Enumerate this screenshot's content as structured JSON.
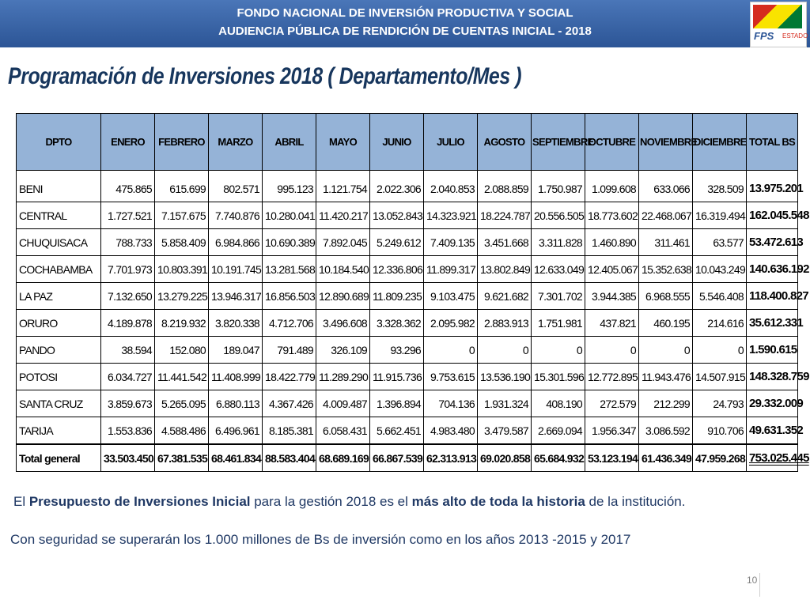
{
  "header": {
    "line1": "FONDO NACIONAL DE INVERSIÓN PRODUCTIVA Y SOCIAL",
    "line2": "AUDIENCIA PÚBLICA DE RENDICIÓN DE CUENTAS INICIAL - 2018",
    "logo_text": "FPS",
    "logo_subtext": "ESTADO"
  },
  "title": "Programación de Inversiones 2018 ( Departamento/Mes )",
  "table": {
    "columns": [
      "DPTO",
      "ENERO",
      "FEBRERO",
      "MARZO",
      "ABRIL",
      "MAYO",
      "JUNIO",
      "JULIO",
      "AGOSTO",
      "SEPTIEMBRE",
      "OCTUBRE",
      "NOVIEMBRE",
      "DICIEMBRE",
      "TOTAL BS"
    ],
    "rows": [
      [
        "BENI",
        "475.865",
        "615.699",
        "802.571",
        "995.123",
        "1.121.754",
        "2.022.306",
        "2.040.853",
        "2.088.859",
        "1.750.987",
        "1.099.608",
        "633.066",
        "328.509",
        "13.975.201"
      ],
      [
        "CENTRAL",
        "1.727.521",
        "7.157.675",
        "7.740.876",
        "10.280.041",
        "11.420.217",
        "13.052.843",
        "14.323.921",
        "18.224.787",
        "20.556.505",
        "18.773.602",
        "22.468.067",
        "16.319.494",
        "162.045.548"
      ],
      [
        "CHUQUISACA",
        "788.733",
        "5.858.409",
        "6.984.866",
        "10.690.389",
        "7.892.045",
        "5.249.612",
        "7.409.135",
        "3.451.668",
        "3.311.828",
        "1.460.890",
        "311.461",
        "63.577",
        "53.472.613"
      ],
      [
        "COCHABAMBA",
        "7.701.973",
        "10.803.391",
        "10.191.745",
        "13.281.568",
        "10.184.540",
        "12.336.806",
        "11.899.317",
        "13.802.849",
        "12.633.049",
        "12.405.067",
        "15.352.638",
        "10.043.249",
        "140.636.192"
      ],
      [
        "LA PAZ",
        "7.132.650",
        "13.279.225",
        "13.946.317",
        "16.856.503",
        "12.890.689",
        "11.809.235",
        "9.103.475",
        "9.621.682",
        "7.301.702",
        "3.944.385",
        "6.968.555",
        "5.546.408",
        "118.400.827"
      ],
      [
        "ORURO",
        "4.189.878",
        "8.219.932",
        "3.820.338",
        "4.712.706",
        "3.496.608",
        "3.328.362",
        "2.095.982",
        "2.883.913",
        "1.751.981",
        "437.821",
        "460.195",
        "214.616",
        "35.612.331"
      ],
      [
        "PANDO",
        "38.594",
        "152.080",
        "189.047",
        "791.489",
        "326.109",
        "93.296",
        "0",
        "0",
        "0",
        "0",
        "0",
        "0",
        "1.590.615"
      ],
      [
        "POTOSI",
        "6.034.727",
        "11.441.542",
        "11.408.999",
        "18.422.779",
        "11.289.290",
        "11.915.736",
        "9.753.615",
        "13.536.190",
        "15.301.596",
        "12.772.895",
        "11.943.476",
        "14.507.915",
        "148.328.759"
      ],
      [
        "SANTA CRUZ",
        "3.859.673",
        "5.265.095",
        "6.880.113",
        "4.367.426",
        "4.009.487",
        "1.396.894",
        "704.136",
        "1.931.324",
        "408.190",
        "272.579",
        "212.299",
        "24.793",
        "29.332.009"
      ],
      [
        "TARIJA",
        "1.553.836",
        "4.588.486",
        "6.496.961",
        "8.185.381",
        "6.058.431",
        "5.662.451",
        "4.983.480",
        "3.479.587",
        "2.669.094",
        "1.956.347",
        "3.086.592",
        "910.706",
        "49.631.352"
      ]
    ],
    "total_row": [
      "Total general",
      "33.503.450",
      "67.381.535",
      "68.461.834",
      "88.583.404",
      "68.689.169",
      "66.867.539",
      "62.313.913",
      "69.020.858",
      "65.684.932",
      "53.123.194",
      "61.436.349",
      "47.959.268",
      "753.025.445"
    ]
  },
  "notes": {
    "line1_parts": [
      "El ",
      "Presupuesto de Inversiones Inicial",
      " para la gestión 2018 es el ",
      "más alto de toda la historia",
      " de la institución."
    ],
    "line2": "Con seguridad se superarán los 1.000 millones de Bs de inversión como en los años 2013 -2015 y 2017"
  },
  "page_number": "10"
}
